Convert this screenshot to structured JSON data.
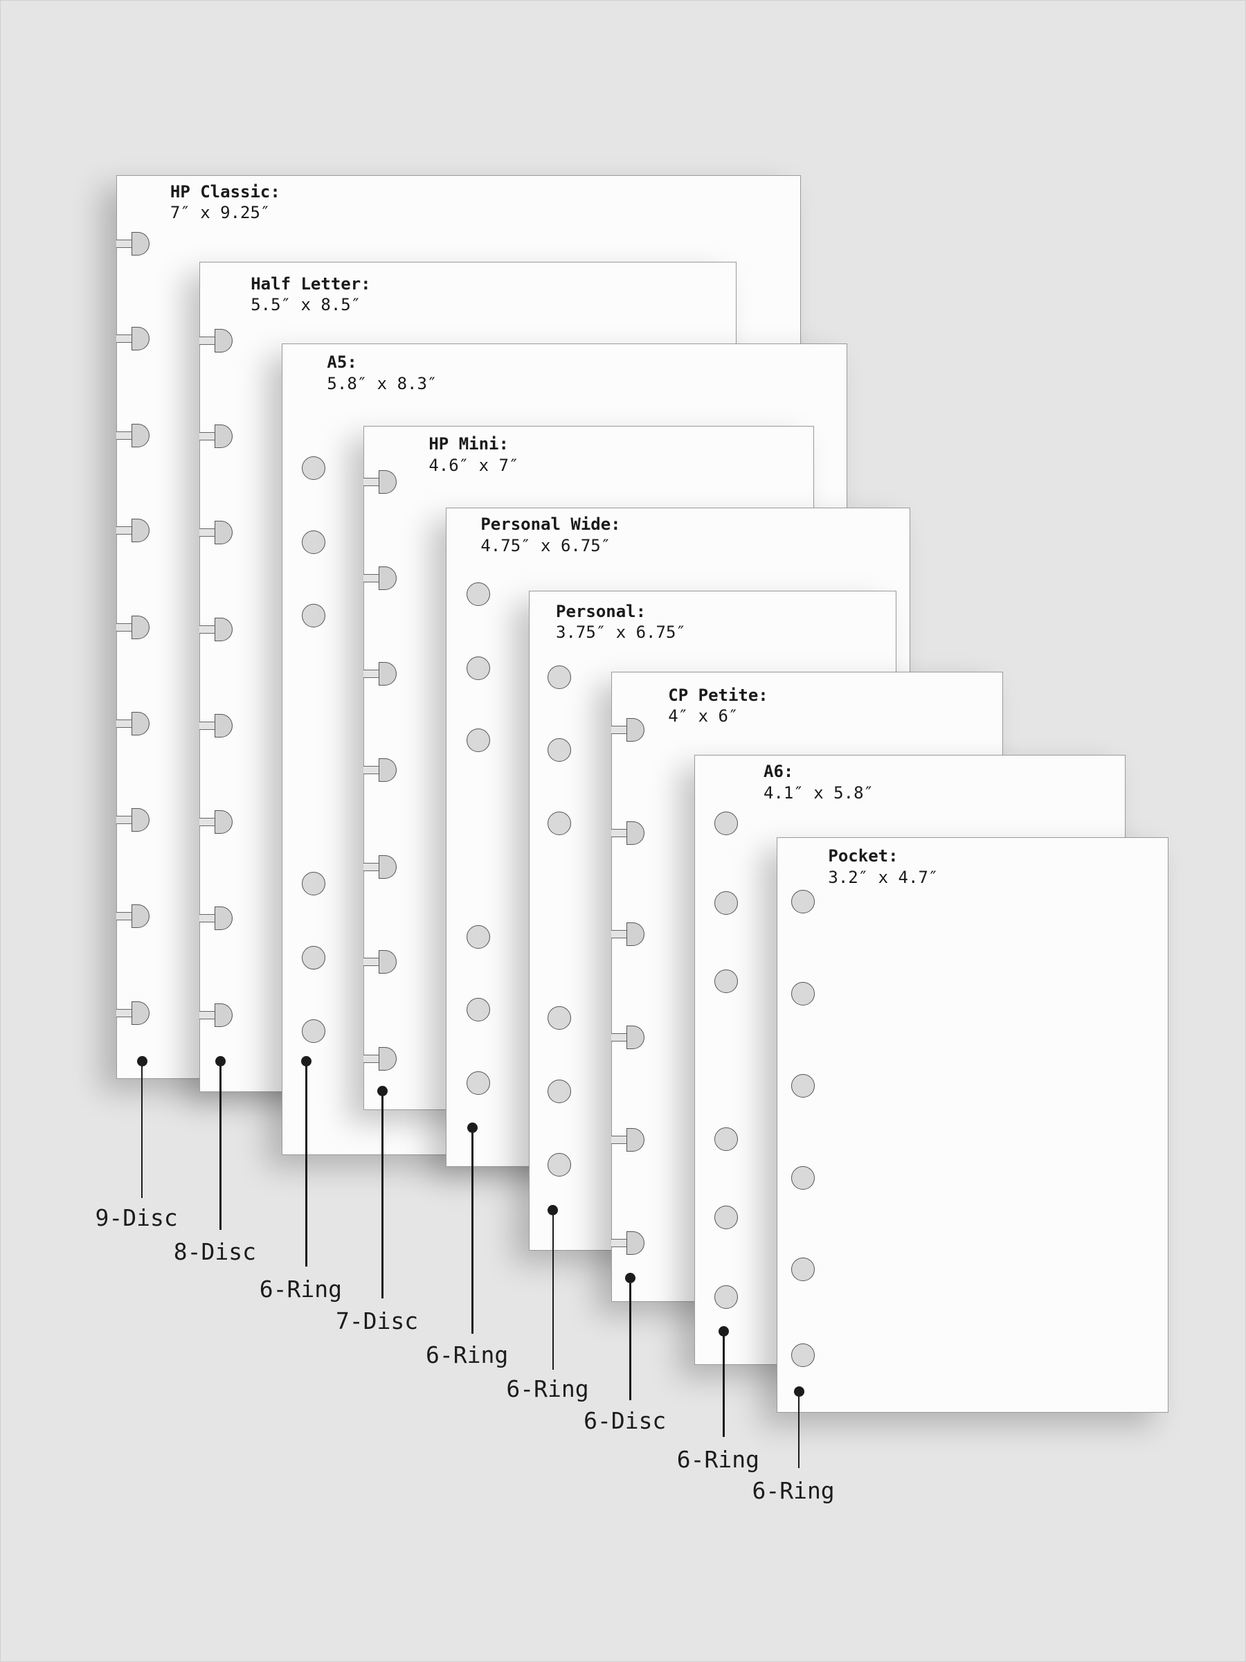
{
  "sizes": [
    {
      "name": "HP Classic:",
      "dims": "7″ x 9.25″",
      "binding": "9-Disc",
      "type": "disc",
      "holes": 9
    },
    {
      "name": "Half Letter:",
      "dims": "5.5″ x 8.5″",
      "binding": "8-Disc",
      "type": "disc",
      "holes": 8
    },
    {
      "name": "A5:",
      "dims": "5.8″ x 8.3″",
      "binding": "6-Ring",
      "type": "ring",
      "holes": 6
    },
    {
      "name": "HP Mini:",
      "dims": "4.6″ x 7″",
      "binding": "7-Disc",
      "type": "disc",
      "holes": 7
    },
    {
      "name": "Personal Wide:",
      "dims": "4.75″ x 6.75″",
      "binding": "6-Ring",
      "type": "ring",
      "holes": 6
    },
    {
      "name": "Personal:",
      "dims": "3.75″ x 6.75″",
      "binding": "6-Ring",
      "type": "ring",
      "holes": 6
    },
    {
      "name": "CP Petite:",
      "dims": "4″ x 6″",
      "binding": "6-Disc",
      "type": "disc",
      "holes": 6
    },
    {
      "name": "A6:",
      "dims": "4.1″ x 5.8″",
      "binding": "6-Ring",
      "type": "ring",
      "holes": 6
    },
    {
      "name": "Pocket:",
      "dims": "3.2″ x 4.7″",
      "binding": "6-Ring",
      "type": "ring",
      "holes": 6
    }
  ],
  "colors": {
    "background": "#e5e5e5",
    "page": "#fcfcfc",
    "hole": "#d6d6d6",
    "leader": "#1c1c1c"
  }
}
